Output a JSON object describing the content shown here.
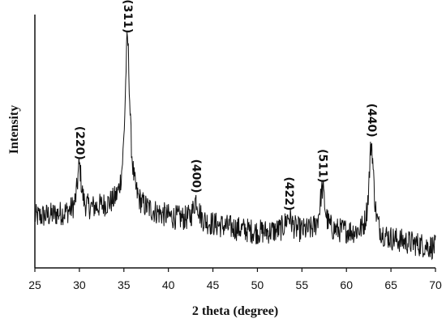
{
  "chart_data": {
    "type": "line",
    "title": "",
    "xlabel": "2 theta (degree)",
    "ylabel": "Intensity",
    "xlim": [
      25,
      70
    ],
    "ylim": [
      0,
      100
    ],
    "x_ticks": [
      25,
      30,
      35,
      40,
      45,
      50,
      55,
      60,
      65,
      70
    ],
    "grid": false,
    "colors": {
      "line": "#111111",
      "axis": "#111111"
    },
    "baseline": [
      [
        25,
        20
      ],
      [
        30,
        22
      ],
      [
        33,
        24
      ],
      [
        36,
        24
      ],
      [
        40,
        20
      ],
      [
        45,
        17
      ],
      [
        50,
        14
      ],
      [
        55,
        14
      ],
      [
        60,
        14
      ],
      [
        65,
        11
      ],
      [
        70,
        8
      ]
    ],
    "peaks": [
      {
        "label": "(220)",
        "x": 30.0,
        "y": 40,
        "width": 0.28
      },
      {
        "label": "(311)",
        "x": 35.4,
        "y": 90,
        "width": 0.34
      },
      {
        "label": "(400)",
        "x": 43.1,
        "y": 27,
        "width": 0.35
      },
      {
        "label": "(422)",
        "x": 53.5,
        "y": 20,
        "width": 0.45
      },
      {
        "label": "(511)",
        "x": 57.3,
        "y": 31,
        "width": 0.35
      },
      {
        "label": "(440)",
        "x": 62.8,
        "y": 49,
        "width": 0.32
      }
    ],
    "noise_amplitude": 5
  }
}
